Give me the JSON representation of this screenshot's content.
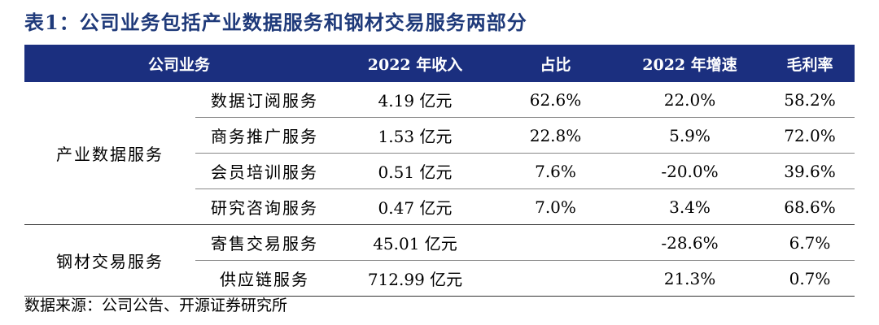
{
  "title": "表1：公司业务包括产业数据服务和钢材交易服务两部分",
  "columns": [
    "公司业务",
    "2022 年收入",
    "占比",
    "2022 年增速",
    "毛利率"
  ],
  "groups": [
    {
      "name": "产业数据服务",
      "rows": [
        {
          "sub": "数据订阅服务",
          "revenue": "4.19 亿元",
          "share": "62.6%",
          "growth": "22.0%",
          "margin": "58.2%"
        },
        {
          "sub": "商务推广服务",
          "revenue": "1.53 亿元",
          "share": "22.8%",
          "growth": "5.9%",
          "margin": "72.0%"
        },
        {
          "sub": "会员培训服务",
          "revenue": "0.51 亿元",
          "share": "7.6%",
          "growth": "-20.0%",
          "margin": "39.6%"
        },
        {
          "sub": "研究咨询服务",
          "revenue": "0.47 亿元",
          "share": "7.0%",
          "growth": "3.4%",
          "margin": "68.6%"
        }
      ]
    },
    {
      "name": "钢材交易服务",
      "rows": [
        {
          "sub": "寄售交易服务",
          "revenue": "45.01 亿元",
          "share": "",
          "growth": "-28.6%",
          "margin": "6.7%"
        },
        {
          "sub": "供应链服务",
          "revenue": "712.99 亿元",
          "share": "",
          "growth": "21.3%",
          "margin": "0.7%"
        }
      ]
    }
  ],
  "source": "数据来源：公司公告、开源证券研究所"
}
